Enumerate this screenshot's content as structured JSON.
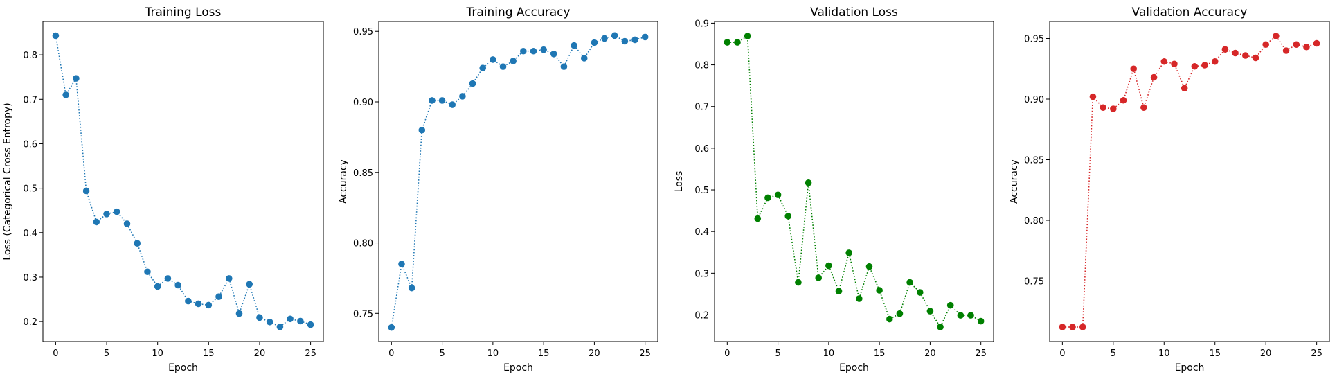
{
  "chart_data": [
    {
      "type": "line",
      "title": "Training Loss",
      "xlabel": "Epoch",
      "ylabel": "Loss (Categorical Cross Entropy)",
      "color": "#1f77b4",
      "xlim": [
        -1.25,
        26.25
      ],
      "ylim": [
        0.155,
        0.875
      ],
      "xticks": [
        0,
        5,
        10,
        15,
        20,
        25
      ],
      "yticks": [
        "0.2",
        "0.3",
        "0.4",
        "0.5",
        "0.6",
        "0.7",
        "0.8"
      ],
      "x": [
        0,
        1,
        2,
        3,
        4,
        5,
        6,
        7,
        8,
        9,
        10,
        11,
        12,
        13,
        14,
        15,
        16,
        17,
        18,
        19,
        20,
        21,
        22,
        23,
        24,
        25
      ],
      "y": [
        0.843,
        0.71,
        0.747,
        0.494,
        0.424,
        0.442,
        0.447,
        0.42,
        0.376,
        0.312,
        0.279,
        0.297,
        0.282,
        0.246,
        0.24,
        0.237,
        0.256,
        0.297,
        0.218,
        0.284,
        0.209,
        0.199,
        0.188,
        0.206,
        0.201,
        0.193
      ]
    },
    {
      "type": "line",
      "title": "Training Accuracy",
      "xlabel": "Epoch",
      "ylabel": "Accuracy",
      "color": "#1f77b4",
      "xlim": [
        -1.25,
        26.25
      ],
      "ylim": [
        0.73,
        0.957
      ],
      "xticks": [
        0,
        5,
        10,
        15,
        20,
        25
      ],
      "yticks": [
        "0.75",
        "0.80",
        "0.85",
        "0.90",
        "0.95"
      ],
      "x": [
        0,
        1,
        2,
        3,
        4,
        5,
        6,
        7,
        8,
        9,
        10,
        11,
        12,
        13,
        14,
        15,
        16,
        17,
        18,
        19,
        20,
        21,
        22,
        23,
        24,
        25
      ],
      "y": [
        0.74,
        0.785,
        0.768,
        0.88,
        0.901,
        0.901,
        0.898,
        0.904,
        0.913,
        0.924,
        0.93,
        0.925,
        0.929,
        0.936,
        0.936,
        0.937,
        0.934,
        0.925,
        0.94,
        0.931,
        0.942,
        0.945,
        0.947,
        0.943,
        0.944,
        0.946
      ]
    },
    {
      "type": "line",
      "title": "Validation Loss",
      "xlabel": "Epoch",
      "ylabel": "Loss",
      "color": "#008000",
      "xlim": [
        -1.25,
        26.25
      ],
      "ylim": [
        0.136,
        0.904
      ],
      "xticks": [
        0,
        5,
        10,
        15,
        20,
        25
      ],
      "yticks": [
        "0.2",
        "0.3",
        "0.4",
        "0.5",
        "0.6",
        "0.7",
        "0.8",
        "0.9"
      ],
      "x": [
        0,
        1,
        2,
        3,
        4,
        5,
        6,
        7,
        8,
        9,
        10,
        11,
        12,
        13,
        14,
        15,
        16,
        17,
        18,
        19,
        20,
        21,
        22,
        23,
        24,
        25
      ],
      "y": [
        0.854,
        0.854,
        0.869,
        0.431,
        0.481,
        0.488,
        0.437,
        0.278,
        0.517,
        0.289,
        0.318,
        0.257,
        0.349,
        0.239,
        0.316,
        0.259,
        0.19,
        0.203,
        0.278,
        0.254,
        0.209,
        0.171,
        0.223,
        0.199,
        0.199,
        0.185
      ]
    },
    {
      "type": "line",
      "title": "Validation Accuracy",
      "xlabel": "Epoch",
      "ylabel": "Accuracy",
      "color": "#d62728",
      "xlim": [
        -1.25,
        26.25
      ],
      "ylim": [
        0.7,
        0.964
      ],
      "xticks": [
        0,
        5,
        10,
        15,
        20,
        25
      ],
      "yticks": [
        "0.75",
        "0.80",
        "0.85",
        "0.90",
        "0.95"
      ],
      "x": [
        0,
        1,
        2,
        3,
        4,
        5,
        6,
        7,
        8,
        9,
        10,
        11,
        12,
        13,
        14,
        15,
        16,
        17,
        18,
        19,
        20,
        21,
        22,
        23,
        24,
        25
      ],
      "y": [
        0.712,
        0.712,
        0.712,
        0.902,
        0.893,
        0.892,
        0.899,
        0.925,
        0.893,
        0.918,
        0.931,
        0.929,
        0.909,
        0.927,
        0.928,
        0.931,
        0.941,
        0.938,
        0.936,
        0.934,
        0.945,
        0.952,
        0.94,
        0.945,
        0.943,
        0.946
      ]
    }
  ]
}
